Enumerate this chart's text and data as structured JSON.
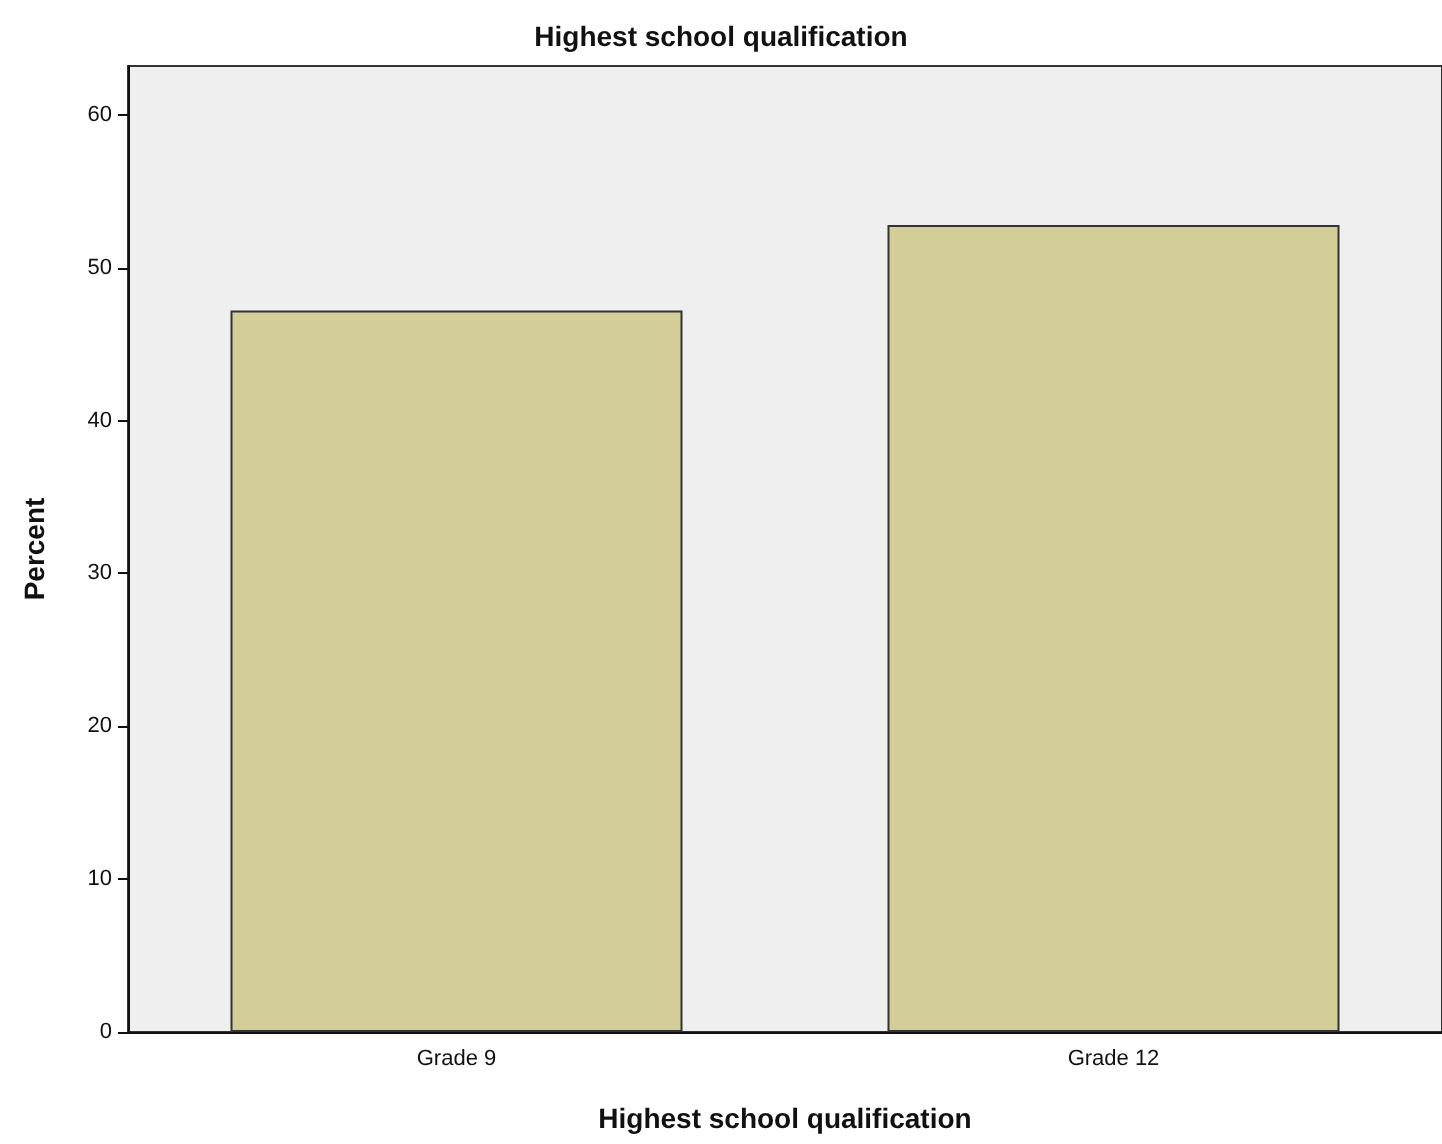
{
  "chart_data": {
    "type": "bar",
    "title": "Highest school qualification",
    "xlabel": "Highest school qualification",
    "ylabel": "Percent",
    "categories": [
      "Grade 9",
      "Grade 12"
    ],
    "values": [
      47.2,
      52.8
    ],
    "color": "#d3ce97",
    "ylim": [
      0,
      63.2
    ],
    "yticks": [
      0,
      10,
      20,
      30,
      40,
      50,
      60
    ],
    "grid": false
  }
}
